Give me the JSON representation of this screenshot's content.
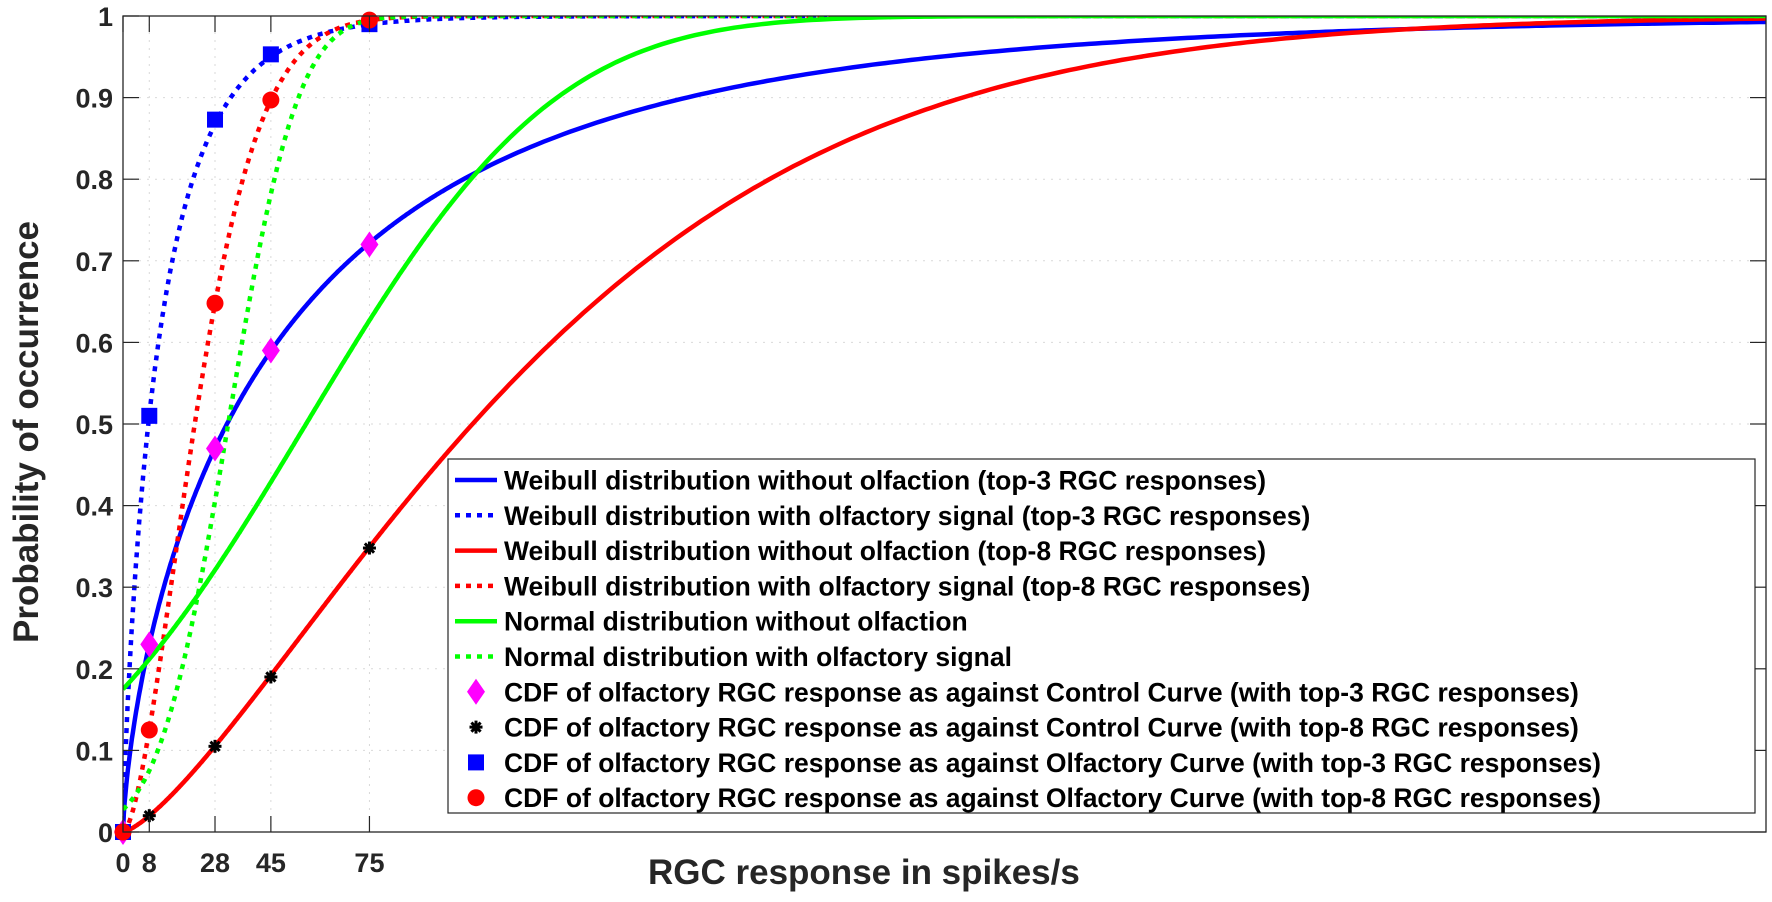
{
  "chart_data": {
    "type": "line",
    "xlabel": "RGC response in spikes/s",
    "ylabel": "Probability of occurrence",
    "xlim": [
      0,
      500
    ],
    "ylim": [
      0,
      1
    ],
    "xticks": [
      0,
      8,
      28,
      45,
      75
    ],
    "xtick_labels": [
      "0",
      "8",
      "28",
      "45",
      "75"
    ],
    "yticks": [
      0,
      0.1,
      0.2,
      0.3,
      0.4,
      0.5,
      0.6,
      0.7,
      0.8,
      0.9,
      1
    ],
    "ytick_labels": [
      "0",
      "0.1",
      "0.2",
      "0.3",
      "0.4",
      "0.5",
      "0.6",
      "0.7",
      "0.8",
      "0.9",
      "1"
    ],
    "grid": true,
    "legend_position": "bottom-right",
    "curves": [
      {
        "name": "Weibull distribution without olfaction (top-3 RGC responses)",
        "model": "weibull",
        "shape": 0.71,
        "scale": 53,
        "color": "#0000ff",
        "style": "solid"
      },
      {
        "name": "Weibull distribution with olfactory signal (top-3 RGC responses)",
        "model": "weibull",
        "shape": 0.83,
        "scale": 12,
        "color": "#0000ff",
        "style": "dotted"
      },
      {
        "name": "Weibull distribution without olfaction (top-8 RGC responses)",
        "model": "weibull",
        "shape": 1.37,
        "scale": 139,
        "color": "#ff0000",
        "style": "solid"
      },
      {
        "name": "Weibull distribution with olfactory signal (top-8 RGC responses)",
        "model": "weibull",
        "shape": 1.64,
        "scale": 27.3,
        "color": "#ff0000",
        "style": "dotted"
      },
      {
        "name": "Normal distribution without olfaction",
        "model": "normal",
        "mean": 55.7,
        "std": 59.6,
        "color": "#00ff00",
        "style": "solid"
      },
      {
        "name": "Normal distribution with olfactory signal",
        "model": "normal",
        "mean": 32,
        "std": 16.7,
        "color": "#00ff00",
        "style": "dotted"
      }
    ],
    "markers": [
      {
        "name": "CDF of olfactory RGC response as against Control Curve (with top-3 RGC responses)",
        "shape": "diamond",
        "color": "#ff00ff",
        "x": [
          0,
          8,
          28,
          45,
          75
        ],
        "y": [
          0,
          0.23,
          0.47,
          0.59,
          0.72
        ]
      },
      {
        "name": "CDF of olfactory RGC response as against Control Curve (with top-8 RGC responses)",
        "shape": "asterisk",
        "color": "#000000",
        "x": [
          0,
          8,
          28,
          45,
          75
        ],
        "y": [
          0,
          0.02,
          0.105,
          0.19,
          0.348
        ]
      },
      {
        "name": "CDF of olfactory RGC response as against Olfactory Curve (with top-3 RGC responses)",
        "shape": "square",
        "color": "#0000ff",
        "x": [
          0,
          8,
          28,
          45,
          75
        ],
        "y": [
          0,
          0.51,
          0.873,
          0.953,
          0.99
        ]
      },
      {
        "name": "CDF of olfactory RGC response as against Olfactory Curve (with top-8 RGC responses)",
        "shape": "circle",
        "color": "#ff0000",
        "x": [
          0,
          8,
          28,
          45,
          75
        ],
        "y": [
          0,
          0.125,
          0.648,
          0.897,
          0.995
        ]
      }
    ]
  }
}
